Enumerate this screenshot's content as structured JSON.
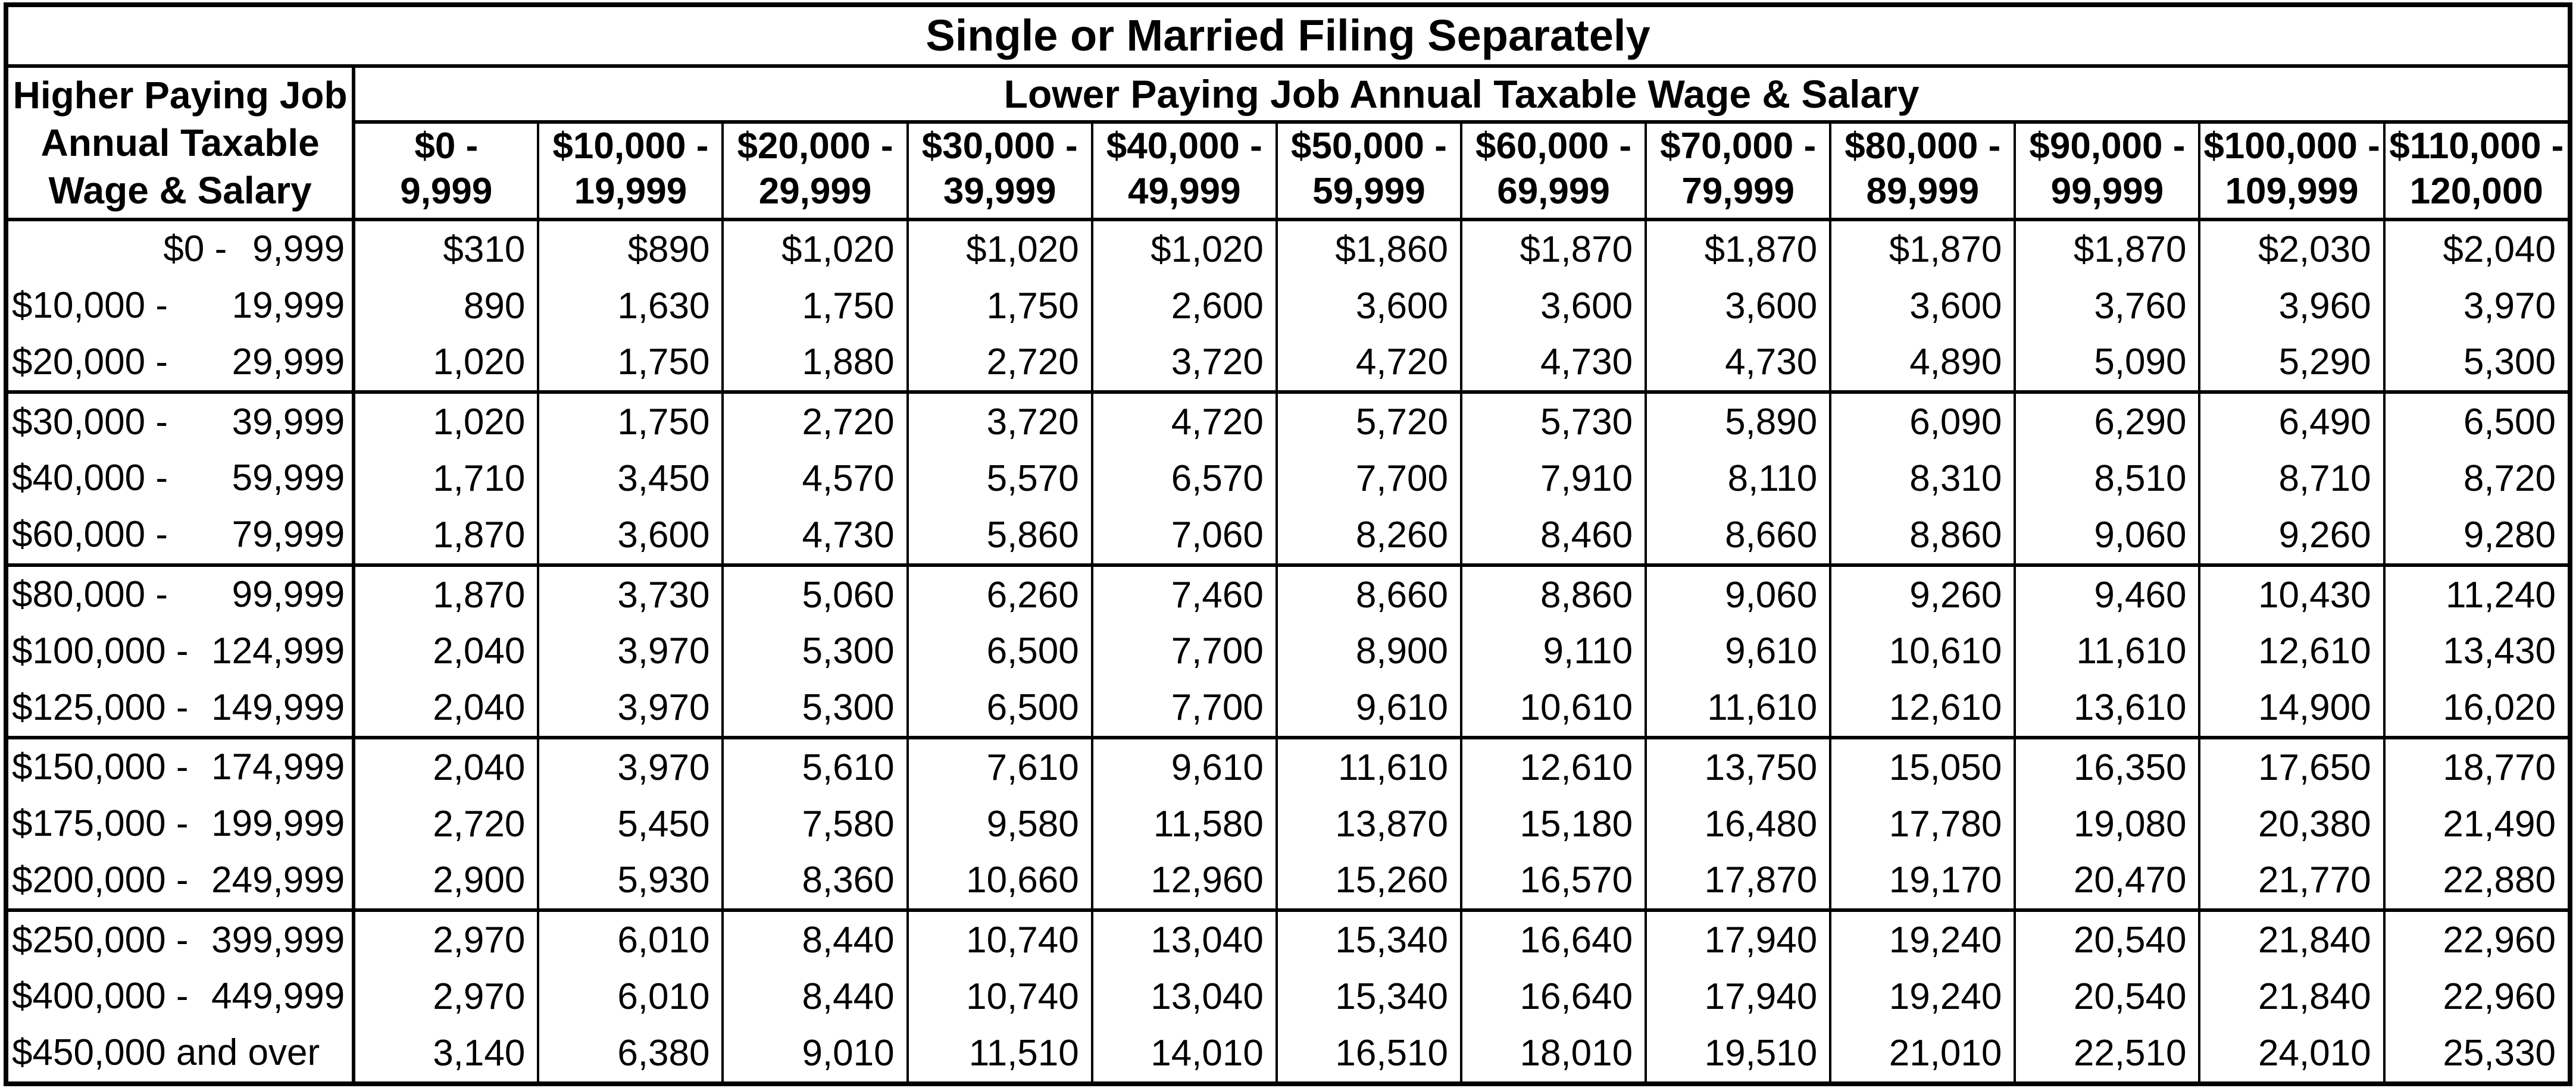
{
  "table": {
    "title": "Single or Married Filing Separately",
    "subtitle": "Lower Paying Job Annual Taxable Wage & Salary",
    "row_header": [
      "Higher Paying Job",
      "Annual Taxable",
      "Wage & Salary"
    ],
    "columns": [
      {
        "line1": "$0 -",
        "line2": "9,999"
      },
      {
        "line1": "$10,000 -",
        "line2": "19,999"
      },
      {
        "line1": "$20,000 -",
        "line2": "29,999"
      },
      {
        "line1": "$30,000 -",
        "line2": "39,999"
      },
      {
        "line1": "$40,000 -",
        "line2": "49,999"
      },
      {
        "line1": "$50,000 -",
        "line2": "59,999"
      },
      {
        "line1": "$60,000 -",
        "line2": "69,999"
      },
      {
        "line1": "$70,000 -",
        "line2": "79,999"
      },
      {
        "line1": "$80,000 -",
        "line2": "89,999"
      },
      {
        "line1": "$90,000 -",
        "line2": "99,999"
      },
      {
        "line1": "$100,000 -",
        "line2": "109,999"
      },
      {
        "line1": "$110,000 -",
        "line2": "120,000"
      }
    ],
    "rows": [
      {
        "lo": "$0 -",
        "hi": "9,999",
        "values": [
          "$310",
          "$890",
          "$1,020",
          "$1,020",
          "$1,020",
          "$1,860",
          "$1,870",
          "$1,870",
          "$1,870",
          "$1,870",
          "$2,030",
          "$2,040"
        ]
      },
      {
        "lo": "$10,000 -",
        "hi": "19,999",
        "values": [
          "890",
          "1,630",
          "1,750",
          "1,750",
          "2,600",
          "3,600",
          "3,600",
          "3,600",
          "3,600",
          "3,760",
          "3,960",
          "3,970"
        ]
      },
      {
        "lo": "$20,000 -",
        "hi": "29,999",
        "values": [
          "1,020",
          "1,750",
          "1,880",
          "2,720",
          "3,720",
          "4,720",
          "4,730",
          "4,730",
          "4,890",
          "5,090",
          "5,290",
          "5,300"
        ]
      },
      {
        "lo": "$30,000 -",
        "hi": "39,999",
        "values": [
          "1,020",
          "1,750",
          "2,720",
          "3,720",
          "4,720",
          "5,720",
          "5,730",
          "5,890",
          "6,090",
          "6,290",
          "6,490",
          "6,500"
        ]
      },
      {
        "lo": "$40,000 -",
        "hi": "59,999",
        "values": [
          "1,710",
          "3,450",
          "4,570",
          "5,570",
          "6,570",
          "7,700",
          "7,910",
          "8,110",
          "8,310",
          "8,510",
          "8,710",
          "8,720"
        ]
      },
      {
        "lo": "$60,000 -",
        "hi": "79,999",
        "values": [
          "1,870",
          "3,600",
          "4,730",
          "5,860",
          "7,060",
          "8,260",
          "8,460",
          "8,660",
          "8,860",
          "9,060",
          "9,260",
          "9,280"
        ]
      },
      {
        "lo": "$80,000 -",
        "hi": "99,999",
        "values": [
          "1,870",
          "3,730",
          "5,060",
          "6,260",
          "7,460",
          "8,660",
          "8,860",
          "9,060",
          "9,260",
          "9,460",
          "10,430",
          "11,240"
        ]
      },
      {
        "lo": "$100,000 -",
        "hi": "124,999",
        "values": [
          "2,040",
          "3,970",
          "5,300",
          "6,500",
          "7,700",
          "8,900",
          "9,110",
          "9,610",
          "10,610",
          "11,610",
          "12,610",
          "13,430"
        ]
      },
      {
        "lo": "$125,000 -",
        "hi": "149,999",
        "values": [
          "2,040",
          "3,970",
          "5,300",
          "6,500",
          "7,700",
          "9,610",
          "10,610",
          "11,610",
          "12,610",
          "13,610",
          "14,900",
          "16,020"
        ]
      },
      {
        "lo": "$150,000 -",
        "hi": "174,999",
        "values": [
          "2,040",
          "3,970",
          "5,610",
          "7,610",
          "9,610",
          "11,610",
          "12,610",
          "13,750",
          "15,050",
          "16,350",
          "17,650",
          "18,770"
        ]
      },
      {
        "lo": "$175,000 -",
        "hi": "199,999",
        "values": [
          "2,720",
          "5,450",
          "7,580",
          "9,580",
          "11,580",
          "13,870",
          "15,180",
          "16,480",
          "17,780",
          "19,080",
          "20,380",
          "21,490"
        ]
      },
      {
        "lo": "$200,000 -",
        "hi": "249,999",
        "values": [
          "2,900",
          "5,930",
          "8,360",
          "10,660",
          "12,960",
          "15,260",
          "16,570",
          "17,870",
          "19,170",
          "20,470",
          "21,770",
          "22,880"
        ]
      },
      {
        "lo": "$250,000 -",
        "hi": "399,999",
        "values": [
          "2,970",
          "6,010",
          "8,440",
          "10,740",
          "13,040",
          "15,340",
          "16,640",
          "17,940",
          "19,240",
          "20,540",
          "21,840",
          "22,960"
        ]
      },
      {
        "lo": "$400,000 -",
        "hi": "449,999",
        "values": [
          "2,970",
          "6,010",
          "8,440",
          "10,740",
          "13,040",
          "15,340",
          "16,640",
          "17,940",
          "19,240",
          "20,540",
          "21,840",
          "22,960"
        ]
      },
      {
        "lo": "$450,000 and over",
        "hi": "",
        "values": [
          "3,140",
          "6,380",
          "9,010",
          "11,510",
          "14,010",
          "16,510",
          "18,010",
          "19,510",
          "21,010",
          "22,510",
          "24,010",
          "25,330"
        ]
      }
    ]
  }
}
